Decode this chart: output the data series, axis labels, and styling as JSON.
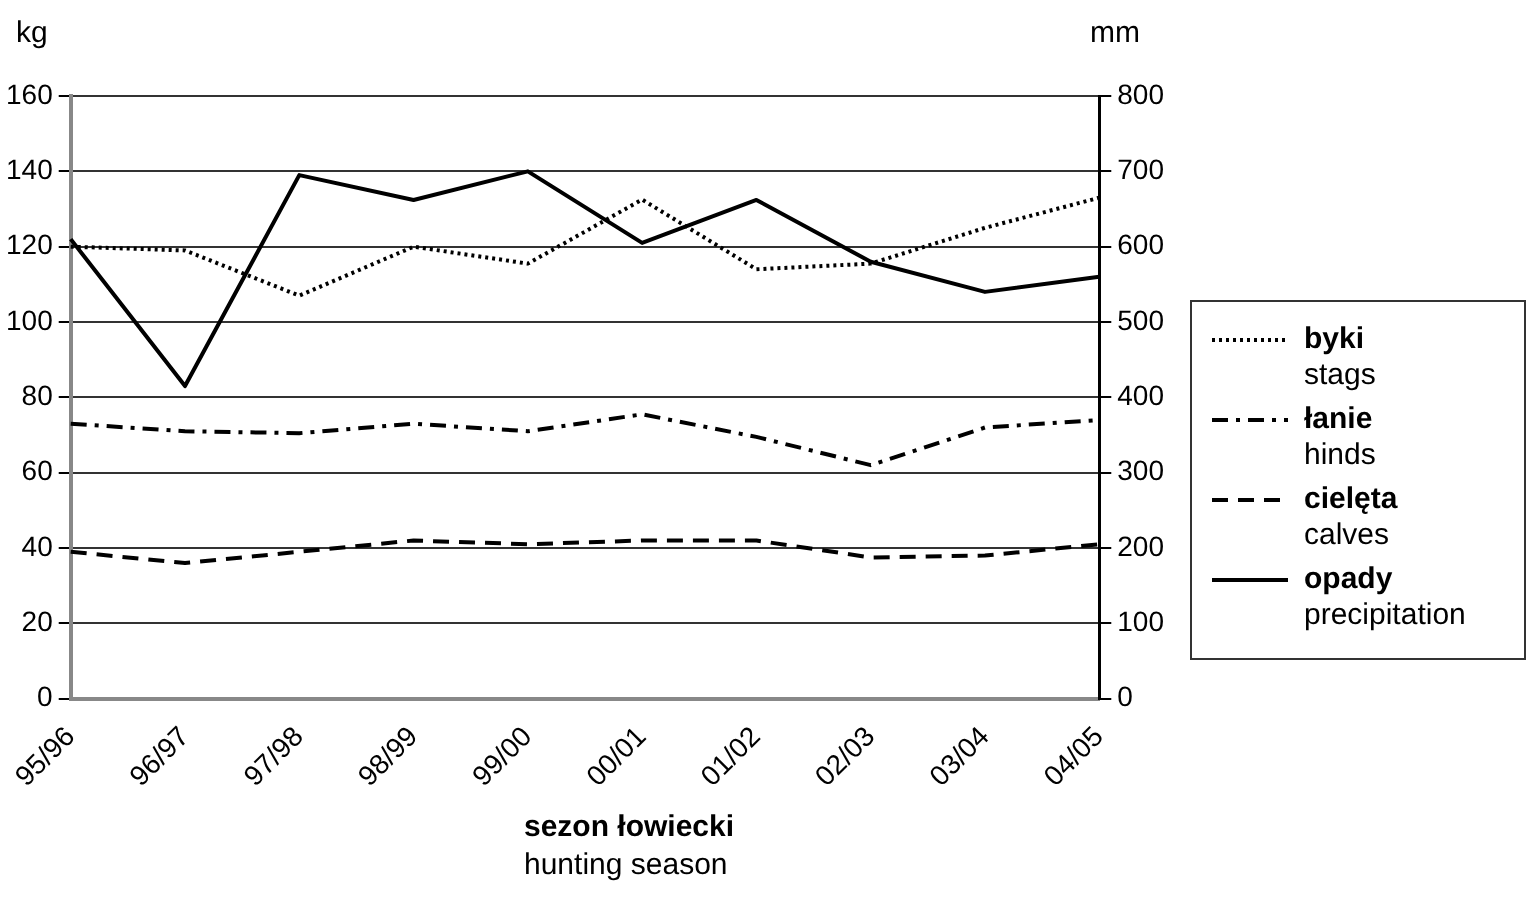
{
  "chart_data": {
    "type": "line",
    "categories": [
      "95/96",
      "96/97",
      "97/98",
      "98/99",
      "99/00",
      "00/01",
      "01/02",
      "02/03",
      "03/04",
      "04/05"
    ],
    "xlabel": "sezon łowiecki\nhunting season",
    "ylabel": "kg",
    "y2label": "mm",
    "ylim": [
      0,
      160
    ],
    "yticks": [
      0,
      20,
      40,
      60,
      80,
      100,
      120,
      140,
      160
    ],
    "y2lim": [
      0,
      800
    ],
    "y2ticks": [
      0,
      100,
      200,
      300,
      400,
      500,
      600,
      700,
      800
    ],
    "grid": "y",
    "legend": "right",
    "marker": "none",
    "series": [
      {
        "name": "byki\nstags",
        "color": "#000000",
        "line_style": "dotted",
        "values": [
          120,
          119,
          107,
          120,
          115.5,
          132.5,
          114,
          115.5,
          125,
          133
        ]
      },
      {
        "name": "łanie\nhinds",
        "color": "#000000",
        "line_style": "dashdot",
        "values": [
          73,
          71,
          70.5,
          73,
          71,
          75.5,
          69.5,
          62,
          72,
          74
        ]
      },
      {
        "name": "cielęta\ncalves",
        "color": "#000000",
        "line_style": "dashed",
        "values": [
          39,
          36,
          39,
          42,
          41,
          42,
          42,
          37.5,
          38,
          41
        ]
      },
      {
        "name": "opady\nprecipitation",
        "color": "#000000",
        "line_style": "solid",
        "axis": "y2",
        "values": [
          610,
          415,
          695,
          662,
          700,
          605,
          662,
          580,
          540,
          560
        ]
      }
    ]
  }
}
